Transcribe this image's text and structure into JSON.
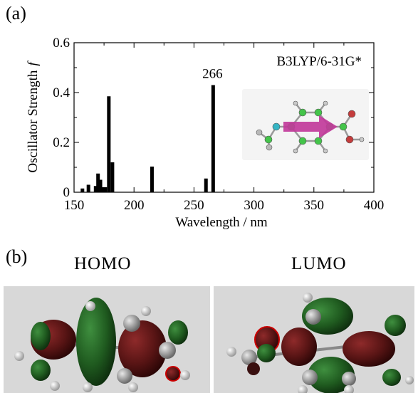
{
  "panel_a_label": "(a)",
  "panel_b_label": "(b)",
  "method_label": "B3LYP/6-31G*",
  "peak_label": "266",
  "homo_label": "HOMO",
  "lumo_label": "LUMO",
  "colors": {
    "bars": "#000000",
    "arrow": "#c1399a",
    "carbon": "#44c44a",
    "nitrogen": "#35b5c4",
    "oxygen": "#c43c3c",
    "orbital_positive": "#1c5a1c",
    "orbital_negative": "#5a1212"
  },
  "chart_data": {
    "type": "bar",
    "xlabel": "Wavelength / nm",
    "ylabel": "Oscillator Strength",
    "ylabel_italic": "f",
    "xlim": [
      150,
      400
    ],
    "ylim": [
      0,
      0.6
    ],
    "xticks": [
      150,
      200,
      250,
      300,
      350,
      400
    ],
    "yticks": [
      0,
      0.2,
      0.4,
      0.6
    ],
    "ytick_labels": [
      "0",
      "0.2",
      "0.4",
      "0.6"
    ],
    "grid": false,
    "bars": [
      {
        "x": 157,
        "y": 0.015
      },
      {
        "x": 162,
        "y": 0.03
      },
      {
        "x": 168,
        "y": 0.025
      },
      {
        "x": 170,
        "y": 0.075
      },
      {
        "x": 172,
        "y": 0.05
      },
      {
        "x": 174,
        "y": 0.02
      },
      {
        "x": 176,
        "y": 0.02
      },
      {
        "x": 179,
        "y": 0.385
      },
      {
        "x": 182,
        "y": 0.12
      },
      {
        "x": 215,
        "y": 0.103
      },
      {
        "x": 260,
        "y": 0.055
      },
      {
        "x": 266,
        "y": 0.43
      }
    ]
  }
}
